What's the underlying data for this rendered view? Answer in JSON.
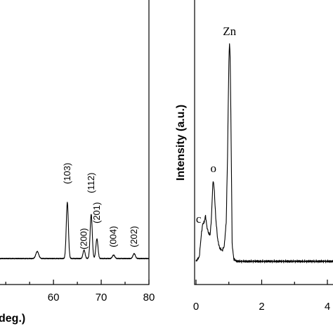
{
  "chart_data": [
    {
      "type": "line",
      "panel": "xrd",
      "xlabel": "deg.)",
      "ylabel": "",
      "xlim": [
        48.5,
        80
      ],
      "x_ticks": [
        60,
        70,
        80
      ],
      "y_ticks": [],
      "peak_labels": [
        {
          "text": "(103)",
          "x": 62.9
        },
        {
          "text": "(200)",
          "x": 66.4
        },
        {
          "text": "(112)",
          "x": 67.9
        },
        {
          "text": "(201)",
          "x": 69.1
        },
        {
          "text": "(004)",
          "x": 72.6
        },
        {
          "text": "(202)",
          "x": 76.9
        }
      ],
      "peaks": [
        {
          "x": 56.6,
          "h": 0.1,
          "w": 0.3
        },
        {
          "x": 62.9,
          "h": 0.8,
          "w": 0.22
        },
        {
          "x": 66.4,
          "h": 0.12,
          "w": 0.22
        },
        {
          "x": 67.9,
          "h": 0.63,
          "w": 0.22
        },
        {
          "x": 69.1,
          "h": 0.28,
          "w": 0.22
        },
        {
          "x": 72.6,
          "h": 0.05,
          "w": 0.25
        },
        {
          "x": 76.9,
          "h": 0.07,
          "w": 0.25
        }
      ],
      "partial_label": "("
    },
    {
      "type": "line",
      "panel": "eds",
      "xlabel": "",
      "ylabel": "Intensity (a.u.)",
      "xlim": [
        0,
        4.5
      ],
      "x_ticks": [
        0,
        2,
        4
      ],
      "y_ticks": [],
      "element_labels": [
        {
          "text": "Zn",
          "x": 1.02
        },
        {
          "text": "o",
          "x": 0.53
        },
        {
          "text": "c",
          "x": 0.25
        }
      ],
      "points": [
        [
          0.0,
          0.0
        ],
        [
          0.1,
          0.02
        ],
        [
          0.16,
          0.12
        ],
        [
          0.2,
          0.17
        ],
        [
          0.25,
          0.18
        ],
        [
          0.29,
          0.21
        ],
        [
          0.33,
          0.16
        ],
        [
          0.38,
          0.13
        ],
        [
          0.43,
          0.12
        ],
        [
          0.47,
          0.2
        ],
        [
          0.51,
          0.35
        ],
        [
          0.53,
          0.37
        ],
        [
          0.56,
          0.32
        ],
        [
          0.6,
          0.2
        ],
        [
          0.66,
          0.1
        ],
        [
          0.72,
          0.06
        ],
        [
          0.8,
          0.05
        ],
        [
          0.86,
          0.07
        ],
        [
          0.92,
          0.18
        ],
        [
          0.96,
          0.48
        ],
        [
          1.0,
          0.92
        ],
        [
          1.02,
          1.0
        ],
        [
          1.04,
          0.94
        ],
        [
          1.07,
          0.55
        ],
        [
          1.1,
          0.08
        ],
        [
          1.15,
          0.01
        ],
        [
          1.25,
          0.0
        ],
        [
          4.5,
          0.0
        ]
      ]
    }
  ]
}
